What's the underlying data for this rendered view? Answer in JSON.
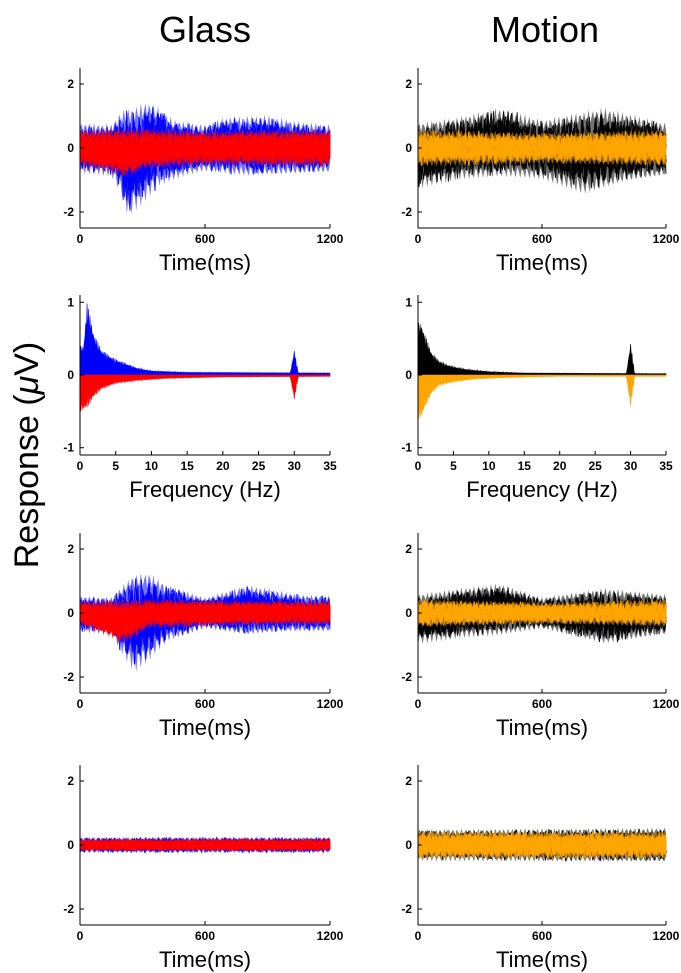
{
  "figure": {
    "column_titles": [
      "Glass",
      "Motion"
    ],
    "ylabel_prefix": "Response (",
    "ylabel_mu": "μ",
    "ylabel_suffix": "V)"
  },
  "chart_data": [
    {
      "id": "glass-time-raw",
      "type": "line",
      "xlabel": "Time(ms)",
      "xlim": [
        0,
        1200
      ],
      "xticks": [
        0,
        600,
        1200
      ],
      "ylim": [
        -2.5,
        2.5
      ],
      "yticks": [
        2,
        0,
        -2
      ],
      "series": [
        {
          "color": "#0000ff",
          "envelope": [
            [
              0,
              0.8
            ],
            [
              150,
              0.75
            ],
            [
              200,
              1.2
            ],
            [
              260,
              1.3
            ],
            [
              320,
              1.5
            ],
            [
              380,
              1.3
            ],
            [
              450,
              0.9
            ],
            [
              600,
              0.75
            ],
            [
              700,
              1.0
            ],
            [
              900,
              1.05
            ],
            [
              1050,
              0.85
            ],
            [
              1200,
              0.75
            ]
          ],
          "lower_envelope": [
            [
              0,
              -0.8
            ],
            [
              150,
              -0.9
            ],
            [
              200,
              -1.5
            ],
            [
              230,
              -2.2
            ],
            [
              300,
              -1.8
            ],
            [
              380,
              -1.2
            ],
            [
              500,
              -0.9
            ],
            [
              600,
              -0.75
            ],
            [
              800,
              -0.9
            ],
            [
              1000,
              -0.85
            ],
            [
              1200,
              -0.8
            ]
          ]
        },
        {
          "color": "#ff0000",
          "envelope": [
            [
              0,
              0.6
            ],
            [
              300,
              0.65
            ],
            [
              600,
              0.55
            ],
            [
              900,
              0.6
            ],
            [
              1200,
              0.6
            ]
          ],
          "lower_envelope": [
            [
              0,
              -0.6
            ],
            [
              220,
              -0.95
            ],
            [
              300,
              -0.7
            ],
            [
              600,
              -0.55
            ],
            [
              900,
              -0.6
            ],
            [
              1200,
              -0.6
            ]
          ]
        }
      ]
    },
    {
      "id": "motion-time-raw",
      "type": "line",
      "xlabel": "Time(ms)",
      "xlim": [
        0,
        1200
      ],
      "xticks": [
        0,
        600,
        1200
      ],
      "ylim": [
        -2.5,
        2.5
      ],
      "yticks": [
        2,
        0,
        -2
      ],
      "series": [
        {
          "color": "#000000",
          "envelope": [
            [
              0,
              0.8
            ],
            [
              200,
              1.0
            ],
            [
              400,
              1.3
            ],
            [
              600,
              0.9
            ],
            [
              900,
              1.3
            ],
            [
              1200,
              0.8
            ]
          ],
          "lower_envelope": [
            [
              0,
              -1.3
            ],
            [
              200,
              -1.0
            ],
            [
              400,
              -0.9
            ],
            [
              600,
              -1.0
            ],
            [
              800,
              -1.5
            ],
            [
              1000,
              -1.1
            ],
            [
              1200,
              -0.9
            ]
          ]
        },
        {
          "color": "#ffa500",
          "envelope": [
            [
              0,
              0.6
            ],
            [
              600,
              0.5
            ],
            [
              1200,
              0.6
            ]
          ],
          "lower_envelope": [
            [
              0,
              -0.6
            ],
            [
              600,
              -0.5
            ],
            [
              1200,
              -0.6
            ]
          ]
        }
      ]
    },
    {
      "id": "glass-spectrum",
      "type": "line",
      "xlabel": "Frequency (Hz)",
      "xlim": [
        0,
        35
      ],
      "xticks": [
        0,
        5,
        10,
        15,
        20,
        25,
        30,
        35
      ],
      "ylim": [
        -1.1,
        1.1
      ],
      "yticks": [
        1,
        0,
        -1
      ],
      "series": [
        {
          "color": "#0000ff",
          "peaks": [
            [
              0.5,
              0.4
            ],
            [
              1,
              1.0
            ],
            [
              2,
              0.55
            ],
            [
              3,
              0.35
            ],
            [
              4,
              0.28
            ],
            [
              5,
              0.22
            ],
            [
              6,
              0.18
            ],
            [
              7,
              0.14
            ],
            [
              8,
              0.1
            ],
            [
              10,
              0.06
            ],
            [
              15,
              0.04
            ],
            [
              30,
              0.35
            ],
            [
              35,
              0.03
            ]
          ]
        },
        {
          "color": "#ff0000",
          "peaks": [
            [
              0.5,
              -0.5
            ],
            [
              1,
              -0.45
            ],
            [
              2,
              -0.3
            ],
            [
              3,
              -0.2
            ],
            [
              5,
              -0.12
            ],
            [
              8,
              -0.08
            ],
            [
              12,
              -0.05
            ],
            [
              20,
              -0.03
            ],
            [
              30,
              -0.35
            ],
            [
              35,
              -0.02
            ]
          ]
        }
      ]
    },
    {
      "id": "motion-spectrum",
      "type": "line",
      "xlabel": "Frequency (Hz)",
      "xlim": [
        0,
        35
      ],
      "xticks": [
        0,
        5,
        10,
        15,
        20,
        25,
        30,
        35
      ],
      "ylim": [
        -1.1,
        1.1
      ],
      "yticks": [
        1,
        0,
        -1
      ],
      "series": [
        {
          "color": "#000000",
          "peaks": [
            [
              0.5,
              0.72
            ],
            [
              1,
              0.55
            ],
            [
              2,
              0.3
            ],
            [
              3,
              0.2
            ],
            [
              4,
              0.15
            ],
            [
              5,
              0.12
            ],
            [
              7,
              0.08
            ],
            [
              10,
              0.05
            ],
            [
              15,
              0.03
            ],
            [
              30,
              0.45
            ],
            [
              35,
              0.02
            ]
          ]
        },
        {
          "color": "#ffa500",
          "peaks": [
            [
              0.5,
              -0.6
            ],
            [
              1,
              -0.45
            ],
            [
              2,
              -0.25
            ],
            [
              3,
              -0.15
            ],
            [
              5,
              -0.1
            ],
            [
              8,
              -0.06
            ],
            [
              12,
              -0.04
            ],
            [
              20,
              -0.02
            ],
            [
              30,
              -0.45
            ],
            [
              35,
              -0.02
            ]
          ]
        }
      ]
    },
    {
      "id": "glass-time-low",
      "type": "line",
      "xlabel": "Time(ms)",
      "xlim": [
        0,
        1200
      ],
      "xticks": [
        0,
        600,
        1200
      ],
      "ylim": [
        -2.5,
        2.5
      ],
      "yticks": [
        2,
        0,
        -2
      ],
      "series": [
        {
          "color": "#0000ff",
          "envelope": [
            [
              0,
              0.55
            ],
            [
              150,
              0.5
            ],
            [
              250,
              1.2
            ],
            [
              330,
              1.3
            ],
            [
              420,
              0.9
            ],
            [
              600,
              0.5
            ],
            [
              800,
              0.9
            ],
            [
              900,
              0.8
            ],
            [
              1050,
              0.6
            ],
            [
              1200,
              0.55
            ]
          ],
          "lower_envelope": [
            [
              0,
              -0.6
            ],
            [
              150,
              -0.7
            ],
            [
              220,
              -1.5
            ],
            [
              260,
              -1.9
            ],
            [
              320,
              -1.6
            ],
            [
              420,
              -0.9
            ],
            [
              600,
              -0.5
            ],
            [
              800,
              -0.7
            ],
            [
              1000,
              -0.6
            ],
            [
              1200,
              -0.6
            ]
          ]
        },
        {
          "color": "#ff0000",
          "envelope": [
            [
              0,
              0.4
            ],
            [
              400,
              0.45
            ],
            [
              800,
              0.4
            ],
            [
              1200,
              0.4
            ]
          ],
          "lower_envelope": [
            [
              0,
              -0.4
            ],
            [
              220,
              -1.0
            ],
            [
              320,
              -0.5
            ],
            [
              800,
              -0.4
            ],
            [
              1200,
              -0.4
            ]
          ]
        }
      ]
    },
    {
      "id": "motion-time-low",
      "type": "line",
      "xlabel": "Time(ms)",
      "xlim": [
        0,
        1200
      ],
      "xticks": [
        0,
        600,
        1200
      ],
      "ylim": [
        -2.5,
        2.5
      ],
      "yticks": [
        2,
        0,
        -2
      ],
      "series": [
        {
          "color": "#000000",
          "envelope": [
            [
              0,
              0.6
            ],
            [
              200,
              0.8
            ],
            [
              400,
              0.95
            ],
            [
              600,
              0.5
            ],
            [
              900,
              0.8
            ],
            [
              1200,
              0.6
            ]
          ],
          "lower_envelope": [
            [
              0,
              -1.0
            ],
            [
              200,
              -0.8
            ],
            [
              400,
              -0.7
            ],
            [
              600,
              -0.5
            ],
            [
              900,
              -1.0
            ],
            [
              1200,
              -0.7
            ]
          ]
        },
        {
          "color": "#ffa500",
          "envelope": [
            [
              0,
              0.45
            ],
            [
              600,
              0.35
            ],
            [
              1200,
              0.45
            ]
          ],
          "lower_envelope": [
            [
              0,
              -0.45
            ],
            [
              600,
              -0.35
            ],
            [
              1200,
              -0.45
            ]
          ]
        }
      ]
    },
    {
      "id": "glass-time-30hz",
      "type": "line",
      "xlabel": "Time(ms)",
      "xlim": [
        0,
        1200
      ],
      "xticks": [
        0,
        600,
        1200
      ],
      "ylim": [
        -2.5,
        2.5
      ],
      "yticks": [
        2,
        0,
        -2
      ],
      "series": [
        {
          "color": "#0000ff",
          "envelope": [
            [
              0,
              0.25
            ],
            [
              1200,
              0.25
            ]
          ],
          "lower_envelope": [
            [
              0,
              -0.25
            ],
            [
              1200,
              -0.25
            ]
          ]
        },
        {
          "color": "#ff0000",
          "envelope": [
            [
              0,
              0.2
            ],
            [
              1200,
              0.2
            ]
          ],
          "lower_envelope": [
            [
              0,
              -0.2
            ],
            [
              1200,
              -0.2
            ]
          ]
        }
      ]
    },
    {
      "id": "motion-time-30hz",
      "type": "line",
      "xlabel": "Time(ms)",
      "xlim": [
        0,
        1200
      ],
      "xticks": [
        0,
        600,
        1200
      ],
      "ylim": [
        -2.5,
        2.5
      ],
      "yticks": [
        2,
        0,
        -2
      ],
      "series": [
        {
          "color": "#000000",
          "envelope": [
            [
              0,
              0.5
            ],
            [
              1200,
              0.55
            ]
          ],
          "lower_envelope": [
            [
              0,
              -0.5
            ],
            [
              1200,
              -0.55
            ]
          ]
        },
        {
          "color": "#ffa500",
          "envelope": [
            [
              0,
              0.45
            ],
            [
              1200,
              0.45
            ]
          ],
          "lower_envelope": [
            [
              0,
              -0.45
            ],
            [
              1200,
              -0.45
            ]
          ]
        }
      ]
    }
  ]
}
